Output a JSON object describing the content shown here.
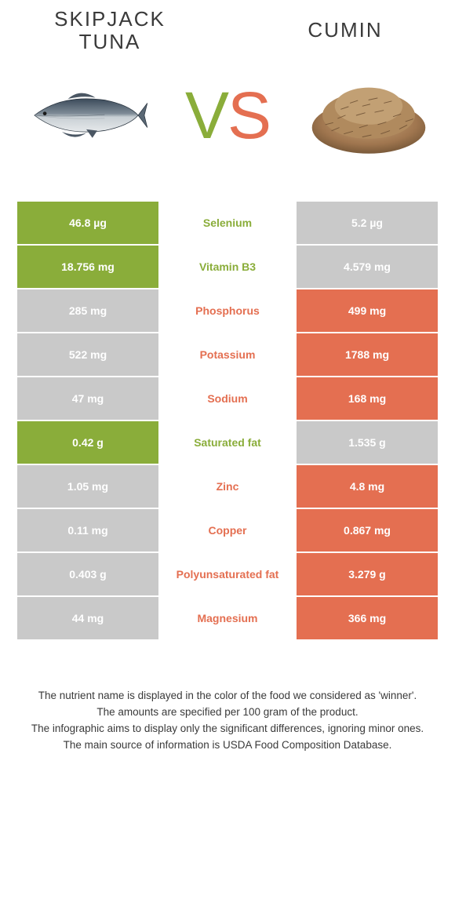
{
  "colors": {
    "green": "#8aad3a",
    "orange": "#e46f51",
    "cell_gray": "#c9c9c9",
    "text": "#3a3a3a",
    "white": "#ffffff"
  },
  "header": {
    "left_title": "SKIPJACK\nTUNA",
    "right_title": "CUMIN"
  },
  "vs": {
    "v": "V",
    "s": "S"
  },
  "table": {
    "rows": [
      {
        "left": "46.8 µg",
        "label": "Selenium",
        "right": "5.2 µg",
        "label_color": "green"
      },
      {
        "left": "18.756 mg",
        "label": "Vitamin B3",
        "right": "4.579 mg",
        "label_color": "green"
      },
      {
        "left": "285 mg",
        "label": "Phosphorus",
        "right": "499 mg",
        "label_color": "orange"
      },
      {
        "left": "522 mg",
        "label": "Potassium",
        "right": "1788 mg",
        "label_color": "orange"
      },
      {
        "left": "47 mg",
        "label": "Sodium",
        "right": "168 mg",
        "label_color": "orange"
      },
      {
        "left": "0.42 g",
        "label": "Saturated fat",
        "right": "1.535 g",
        "label_color": "green"
      },
      {
        "left": "1.05 mg",
        "label": "Zinc",
        "right": "4.8 mg",
        "label_color": "orange"
      },
      {
        "left": "0.11 mg",
        "label": "Copper",
        "right": "0.867 mg",
        "label_color": "orange"
      },
      {
        "left": "0.403 g",
        "label": "Polyunsaturated fat",
        "right": "3.279 g",
        "label_color": "orange"
      },
      {
        "left": "44 mg",
        "label": "Magnesium",
        "right": "366 mg",
        "label_color": "orange"
      }
    ]
  },
  "footer": {
    "line1": "The nutrient name is displayed in the color of the food we considered as 'winner'.",
    "line2": "The amounts are specified per 100 gram of the product.",
    "line3": "The infographic aims to display only the significant differences, ignoring minor ones.",
    "line4": "The main source of information is USDA Food Composition Database."
  }
}
